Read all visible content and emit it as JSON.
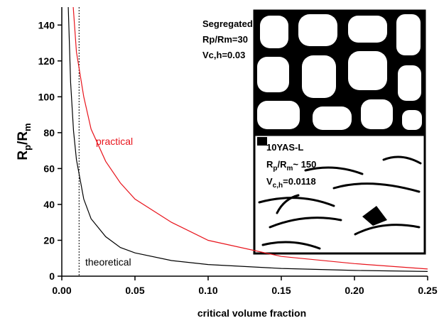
{
  "chart_data": {
    "type": "line",
    "x_label": "critical volume fraction",
    "y_label_parts": [
      "R",
      "p",
      "/R",
      "m"
    ],
    "xlim": [
      0,
      0.25
    ],
    "ylim": [
      0,
      150
    ],
    "xticks": [
      {
        "value": 0,
        "label": "0.00"
      },
      {
        "value": 0.05,
        "label": "0.05"
      },
      {
        "value": 0.1,
        "label": "0.10"
      },
      {
        "value": 0.15,
        "label": "0.15"
      },
      {
        "value": 0.2,
        "label": "0.20"
      },
      {
        "value": 0.25,
        "label": "0.25"
      }
    ],
    "yticks": [
      0,
      20,
      40,
      60,
      80,
      100,
      120,
      140
    ],
    "vline": 0.0118,
    "series": [
      {
        "name": "theoretical",
        "color": "#000000",
        "x": [
          0.0044,
          0.006,
          0.008,
          0.01,
          0.015,
          0.02,
          0.03,
          0.04,
          0.05,
          0.075,
          0.1,
          0.15,
          0.2,
          0.25
        ],
        "values": [
          150,
          108,
          81,
          65,
          43,
          32,
          22,
          16,
          13,
          8.7,
          6.5,
          4.3,
          3.2,
          2.6
        ]
      },
      {
        "name": "practical",
        "color": "#e8141c",
        "x": [
          0.0078,
          0.01,
          0.015,
          0.02,
          0.03,
          0.04,
          0.05,
          0.075,
          0.1,
          0.15,
          0.2,
          0.25
        ],
        "values": [
          150,
          125,
          100,
          82,
          64,
          52,
          43,
          30,
          20,
          11,
          7,
          4
        ]
      }
    ],
    "insets": [
      {
        "lines": [
          [
            "Segregated"
          ],
          [
            "Rp/Rm=30"
          ],
          [
            "Vc,h=0.03"
          ]
        ]
      },
      {
        "lines": [
          [
            "10YAS-L"
          ],
          [
            "R",
            "p",
            "/R",
            "m",
            "~ 150"
          ],
          [
            "V",
            "c,h",
            "=0.0118"
          ]
        ]
      }
    ]
  }
}
